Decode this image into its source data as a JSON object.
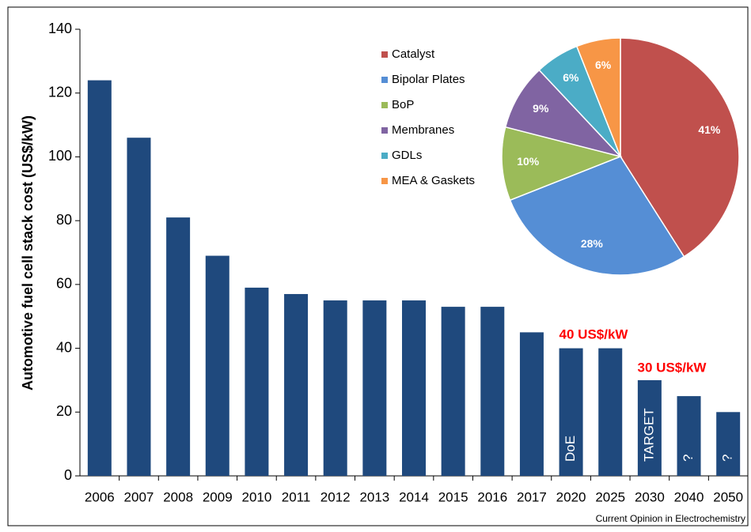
{
  "chart_data": [
    {
      "type": "bar",
      "y_label": "Automotive fuel cell stack cost (US$/kW)",
      "categories": [
        "2006",
        "2007",
        "2008",
        "2009",
        "2010",
        "2011",
        "2012",
        "2013",
        "2014",
        "2015",
        "2016",
        "2017",
        "2020",
        "2025",
        "2030",
        "2040",
        "2050"
      ],
      "values": [
        124,
        106,
        81,
        69,
        59,
        57,
        55,
        55,
        55,
        53,
        53,
        45,
        40,
        40,
        30,
        25,
        20
      ],
      "bar_labels": [
        null,
        null,
        null,
        null,
        null,
        null,
        null,
        null,
        null,
        null,
        null,
        null,
        "DoE",
        null,
        "TARGET",
        "?",
        "?"
      ],
      "annotations": [
        "40 US$/kW",
        "30 US$/kW"
      ],
      "color": "#1f497d",
      "ylim": [
        0,
        140
      ],
      "yticks": [
        0,
        20,
        40,
        60,
        80,
        100,
        120,
        140
      ],
      "source": "Current Opinion in Electrochemistry"
    },
    {
      "type": "pie",
      "categories": [
        "Catalyst",
        "Bipolar Plates",
        "BoP",
        "Membranes",
        "GDLs",
        "MEA & Gaskets"
      ],
      "values": [
        41,
        28,
        10,
        9,
        6,
        6
      ],
      "value_labels": [
        "41%",
        "28%",
        "10%",
        "9%",
        "6%",
        "6%"
      ],
      "colors": [
        "#c0504d",
        "#558ed5",
        "#9bbb59",
        "#8064a2",
        "#4bacc6",
        "#f79646"
      ],
      "legend": "left"
    }
  ]
}
